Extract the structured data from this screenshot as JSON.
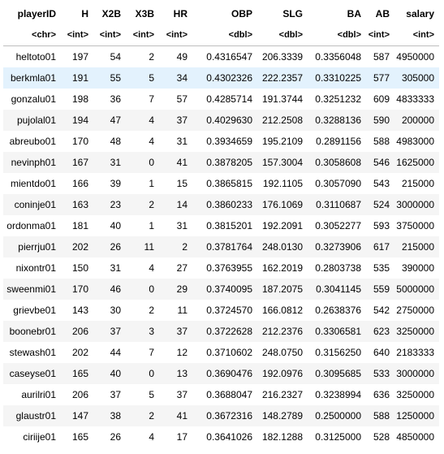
{
  "columns": [
    "playerID",
    "H",
    "X2B",
    "X3B",
    "HR",
    "OBP",
    "SLG",
    "BA",
    "AB",
    "salary"
  ],
  "types": [
    "<chr>",
    "<int>",
    "<int>",
    "<int>",
    "<int>",
    "<dbl>",
    "<dbl>",
    "<dbl>",
    "<int>",
    "<int>"
  ],
  "hover_row": 1,
  "rows": [
    [
      "heltoto01",
      "197",
      "54",
      "2",
      "49",
      "0.4316547",
      "206.3339",
      "0.3356048",
      "587",
      "4950000"
    ],
    [
      "berkmla01",
      "191",
      "55",
      "5",
      "34",
      "0.4302326",
      "222.2357",
      "0.3310225",
      "577",
      "305000"
    ],
    [
      "gonzalu01",
      "198",
      "36",
      "7",
      "57",
      "0.4285714",
      "191.3744",
      "0.3251232",
      "609",
      "4833333"
    ],
    [
      "pujolal01",
      "194",
      "47",
      "4",
      "37",
      "0.4029630",
      "212.2508",
      "0.3288136",
      "590",
      "200000"
    ],
    [
      "abreubo01",
      "170",
      "48",
      "4",
      "31",
      "0.3934659",
      "195.2109",
      "0.2891156",
      "588",
      "4983000"
    ],
    [
      "nevinph01",
      "167",
      "31",
      "0",
      "41",
      "0.3878205",
      "157.3004",
      "0.3058608",
      "546",
      "1625000"
    ],
    [
      "mientdo01",
      "166",
      "39",
      "1",
      "15",
      "0.3865815",
      "192.1105",
      "0.3057090",
      "543",
      "215000"
    ],
    [
      "coninje01",
      "163",
      "23",
      "2",
      "14",
      "0.3860233",
      "176.1069",
      "0.3110687",
      "524",
      "3000000"
    ],
    [
      "ordonma01",
      "181",
      "40",
      "1",
      "31",
      "0.3815201",
      "192.2091",
      "0.3052277",
      "593",
      "3750000"
    ],
    [
      "pierrju01",
      "202",
      "26",
      "11",
      "2",
      "0.3781764",
      "248.0130",
      "0.3273906",
      "617",
      "215000"
    ],
    [
      "nixontr01",
      "150",
      "31",
      "4",
      "27",
      "0.3763955",
      "162.2019",
      "0.2803738",
      "535",
      "390000"
    ],
    [
      "sweenmi01",
      "170",
      "46",
      "0",
      "29",
      "0.3740095",
      "187.2075",
      "0.3041145",
      "559",
      "5000000"
    ],
    [
      "grievbe01",
      "143",
      "30",
      "2",
      "11",
      "0.3724570",
      "166.0812",
      "0.2638376",
      "542",
      "2750000"
    ],
    [
      "boonebr01",
      "206",
      "37",
      "3",
      "37",
      "0.3722628",
      "212.2376",
      "0.3306581",
      "623",
      "3250000"
    ],
    [
      "stewash01",
      "202",
      "44",
      "7",
      "12",
      "0.3710602",
      "248.0750",
      "0.3156250",
      "640",
      "2183333"
    ],
    [
      "caseyse01",
      "165",
      "40",
      "0",
      "13",
      "0.3690476",
      "192.0976",
      "0.3095685",
      "533",
      "3000000"
    ],
    [
      "aurilri01",
      "206",
      "37",
      "5",
      "37",
      "0.3688047",
      "216.2327",
      "0.3238994",
      "636",
      "3250000"
    ],
    [
      "glaustr01",
      "147",
      "38",
      "2",
      "41",
      "0.3672316",
      "148.2789",
      "0.2500000",
      "588",
      "1250000"
    ],
    [
      "ciriije01",
      "165",
      "26",
      "4",
      "17",
      "0.3641026",
      "182.1288",
      "0.3125000",
      "528",
      "4850000"
    ]
  ]
}
